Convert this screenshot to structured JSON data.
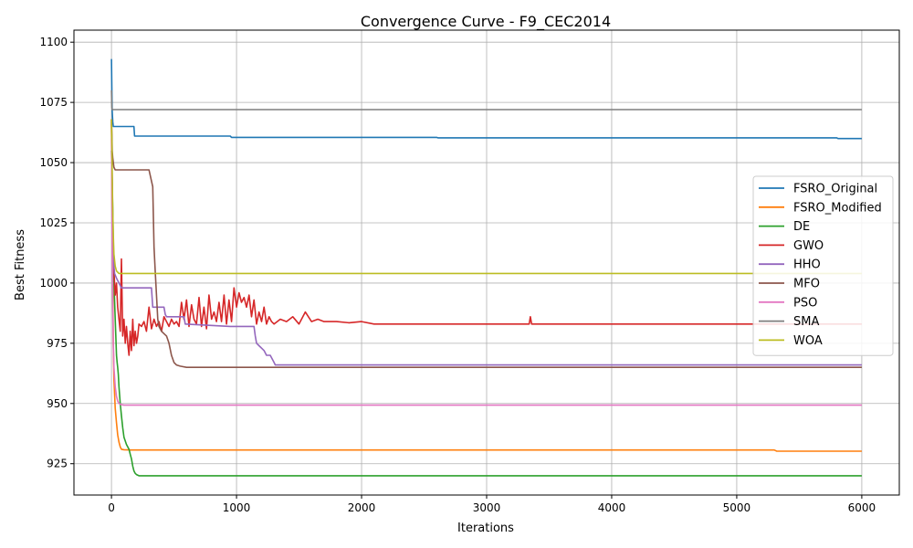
{
  "chart_data": {
    "type": "line",
    "title": "Convergence Curve - F9_CEC2014",
    "xlabel": "Iterations",
    "ylabel": "Best Fitness",
    "xlim": [
      -300,
      6300
    ],
    "ylim": [
      912,
      1105
    ],
    "xticks": [
      0,
      1000,
      2000,
      3000,
      4000,
      5000,
      6000
    ],
    "yticks": [
      925,
      950,
      975,
      1000,
      1025,
      1050,
      1075,
      1100
    ],
    "grid": true,
    "legend_position": "center-right",
    "series": [
      {
        "name": "FSRO_Original",
        "color": "#1f77b4",
        "x": [
          0,
          5,
          10,
          15,
          180,
          185,
          950,
          960,
          2600,
          2610,
          5800,
          5810,
          6000
        ],
        "y": [
          1093,
          1072,
          1067,
          1065,
          1065,
          1061,
          1061,
          1060.5,
          1060.5,
          1060.3,
          1060.3,
          1060,
          1060
        ]
      },
      {
        "name": "FSRO_Modified",
        "color": "#ff7f0e",
        "x": [
          0,
          5,
          10,
          15,
          20,
          30,
          40,
          50,
          60,
          70,
          80,
          100,
          150,
          200,
          400,
          1000,
          5300,
          5320,
          6000
        ],
        "y": [
          1066,
          1030,
          1000,
          975,
          960,
          948,
          942,
          937,
          934,
          932,
          931,
          930.8,
          930.7,
          930.7,
          930.7,
          930.7,
          930.7,
          930.2,
          930.2
        ]
      },
      {
        "name": "DE",
        "color": "#2ca02c",
        "x": [
          0,
          10,
          20,
          30,
          40,
          45,
          50,
          55,
          60,
          70,
          80,
          90,
          100,
          120,
          140,
          150,
          160,
          170,
          180,
          190,
          200,
          220,
          300,
          6000
        ],
        "y": [
          1055,
          1030,
          1000,
          985,
          970,
          967,
          965,
          962,
          957,
          950,
          945,
          940,
          936,
          933,
          931,
          929,
          927,
          924,
          922,
          921,
          920.5,
          920,
          920,
          920
        ]
      },
      {
        "name": "GWO",
        "color": "#d62728",
        "x": [
          0,
          10,
          20,
          30,
          40,
          50,
          60,
          70,
          80,
          90,
          100,
          110,
          120,
          130,
          140,
          150,
          160,
          170,
          180,
          190,
          200,
          210,
          220,
          240,
          260,
          280,
          300,
          320,
          340,
          360,
          380,
          400,
          420,
          440,
          460,
          480,
          500,
          520,
          540,
          560,
          580,
          600,
          620,
          640,
          660,
          680,
          700,
          720,
          740,
          760,
          780,
          800,
          820,
          840,
          860,
          880,
          900,
          920,
          940,
          960,
          980,
          1000,
          1020,
          1040,
          1060,
          1080,
          1100,
          1120,
          1140,
          1160,
          1180,
          1200,
          1220,
          1240,
          1260,
          1280,
          1300,
          1350,
          1400,
          1450,
          1500,
          1550,
          1600,
          1650,
          1700,
          1800,
          1900,
          2000,
          2100,
          2200,
          2500,
          3000,
          3340,
          3350,
          3360,
          3500,
          4000,
          4500,
          5000,
          6000
        ],
        "y": [
          1067,
          1020,
          1005,
          995,
          1000,
          990,
          985,
          980,
          1010,
          978,
          985,
          975,
          982,
          975,
          970,
          980,
          972,
          985,
          974,
          980,
          975,
          978,
          983,
          982,
          984,
          980,
          990,
          981,
          985,
          982,
          984,
          980,
          986,
          984,
          982,
          985,
          983,
          984,
          982,
          992,
          985,
          993,
          982,
          991,
          985,
          983,
          994,
          982,
          990,
          981,
          995,
          985,
          988,
          984,
          992,
          984,
          995,
          983,
          993,
          984,
          998,
          990,
          996,
          992,
          994,
          990,
          995,
          986,
          993,
          983,
          988,
          984,
          990,
          983,
          986,
          984,
          983,
          985,
          984,
          986,
          983,
          988,
          984,
          985,
          984,
          984,
          983.5,
          984,
          983,
          983,
          983,
          983,
          983,
          986,
          983,
          983,
          983,
          983,
          983,
          983
        ]
      },
      {
        "name": "HHO",
        "color": "#9467bd",
        "x": [
          0,
          5,
          10,
          15,
          25,
          40,
          60,
          80,
          100,
          320,
          330,
          420,
          430,
          440,
          580,
          590,
          950,
          1140,
          1150,
          1160,
          1180,
          1220,
          1240,
          1270,
          1300,
          1310,
          1450,
          1460,
          6000
        ],
        "y": [
          1068,
          1045,
          1025,
          1010,
          1004,
          1002,
          1000,
          998,
          998,
          998,
          990,
          990,
          987,
          986,
          986,
          983,
          982,
          982,
          978,
          975,
          974,
          972,
          970,
          970,
          967,
          966,
          966,
          966,
          966
        ]
      },
      {
        "name": "MFO",
        "color": "#8c564b",
        "x": [
          0,
          3,
          6,
          10,
          20,
          30,
          40,
          50,
          80,
          200,
          300,
          330,
          340,
          350,
          360,
          370,
          380,
          400,
          420,
          440,
          460,
          480,
          500,
          520,
          550,
          600,
          700,
          1000,
          2000,
          6000
        ],
        "y": [
          1068,
          1062,
          1055,
          1052,
          1048,
          1047,
          1047,
          1047,
          1047,
          1047,
          1047,
          1040,
          1015,
          1005,
          995,
          985,
          982,
          980,
          979,
          978,
          975,
          970,
          967,
          966,
          965.5,
          965,
          965,
          965,
          965,
          965
        ]
      },
      {
        "name": "PSO",
        "color": "#e377c2",
        "x": [
          0,
          5,
          10,
          15,
          20,
          30,
          40,
          50,
          60,
          80,
          100,
          6000
        ],
        "y": [
          1060,
          1020,
          990,
          975,
          965,
          957,
          953,
          951,
          950,
          949.5,
          949.3,
          949.3
        ]
      },
      {
        "name": "SMA",
        "color": "#7f7f7f",
        "x": [
          0,
          3,
          6,
          10,
          6000
        ],
        "y": [
          1080,
          1073,
          1072,
          1072,
          1072
        ]
      },
      {
        "name": "WOA",
        "color": "#bcbd22",
        "x": [
          0,
          3,
          6,
          10,
          15,
          20,
          30,
          40,
          60,
          6000
        ],
        "y": [
          1068,
          1060,
          1045,
          1030,
          1020,
          1012,
          1007,
          1005,
          1004,
          1004
        ]
      }
    ]
  }
}
